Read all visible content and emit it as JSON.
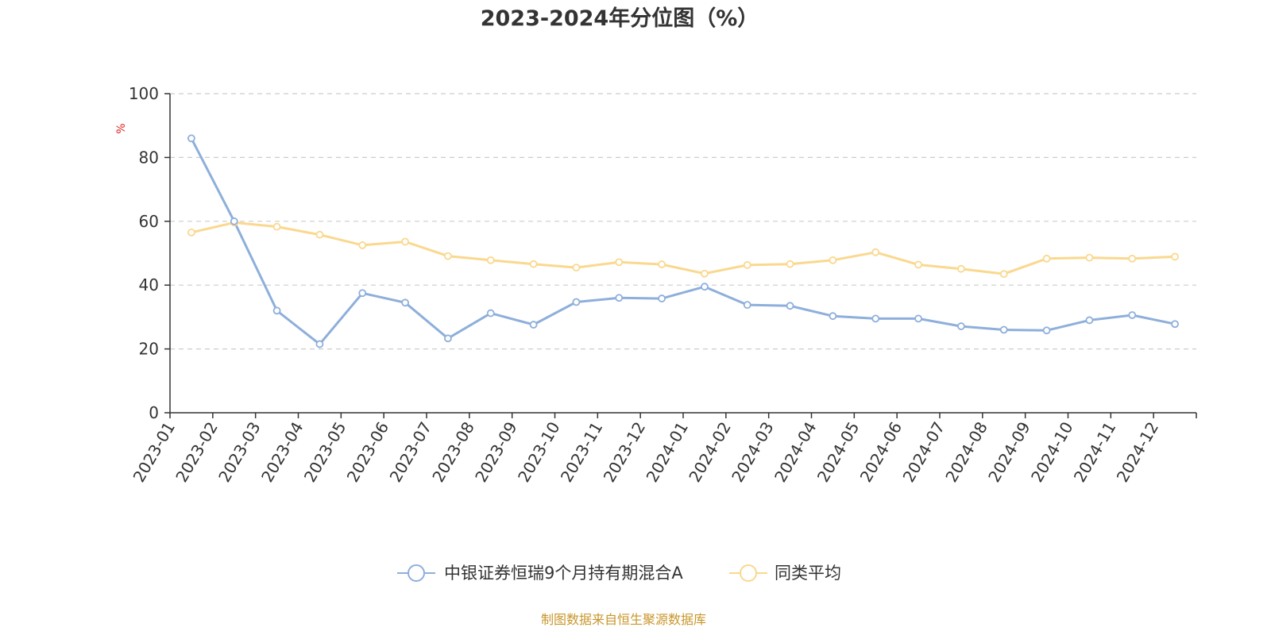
{
  "chart_data": {
    "type": "line",
    "title": "2023-2024年分位图（%）",
    "ylabel": "%",
    "ylim": [
      0,
      100
    ],
    "yticks": [
      0,
      20,
      40,
      60,
      80,
      100
    ],
    "grid": "horizontal-dashed",
    "legend_position": "bottom",
    "categories": [
      "2023-01",
      "2023-02",
      "2023-03",
      "2023-04",
      "2023-05",
      "2023-06",
      "2023-07",
      "2023-08",
      "2023-09",
      "2023-10",
      "2023-11",
      "2023-12",
      "2024-01",
      "2024-02",
      "2024-03",
      "2024-04",
      "2024-05",
      "2024-06",
      "2024-07",
      "2024-08",
      "2024-09",
      "2024-10",
      "2024-11",
      "2024-12"
    ],
    "series": [
      {
        "name": "中银证券恒瑞9个月持有期混合A",
        "color": "#8eafdb",
        "values": [
          86,
          60,
          32,
          21.5,
          37.5,
          34.5,
          23.3,
          31.2,
          27.6,
          34.7,
          36,
          35.8,
          39.5,
          33.8,
          33.5,
          30.3,
          29.5,
          29.5,
          27.1,
          26,
          25.8,
          29,
          30.6,
          27.8
        ]
      },
      {
        "name": "同类平均",
        "color": "#fad88e",
        "values": [
          56.5,
          59.6,
          58.3,
          55.8,
          52.5,
          53.6,
          49.1,
          47.8,
          46.6,
          45.5,
          47.2,
          46.5,
          43.6,
          46.3,
          46.6,
          47.8,
          50.3,
          46.4,
          45.1,
          43.5,
          48.3,
          48.6,
          48.3,
          48.9
        ]
      }
    ]
  },
  "source": "制图数据来自恒生聚源数据库",
  "colors": {
    "ylabel": "#e02020",
    "source": "#c8962a",
    "axis": "#333333",
    "grid": "#cccccc"
  }
}
